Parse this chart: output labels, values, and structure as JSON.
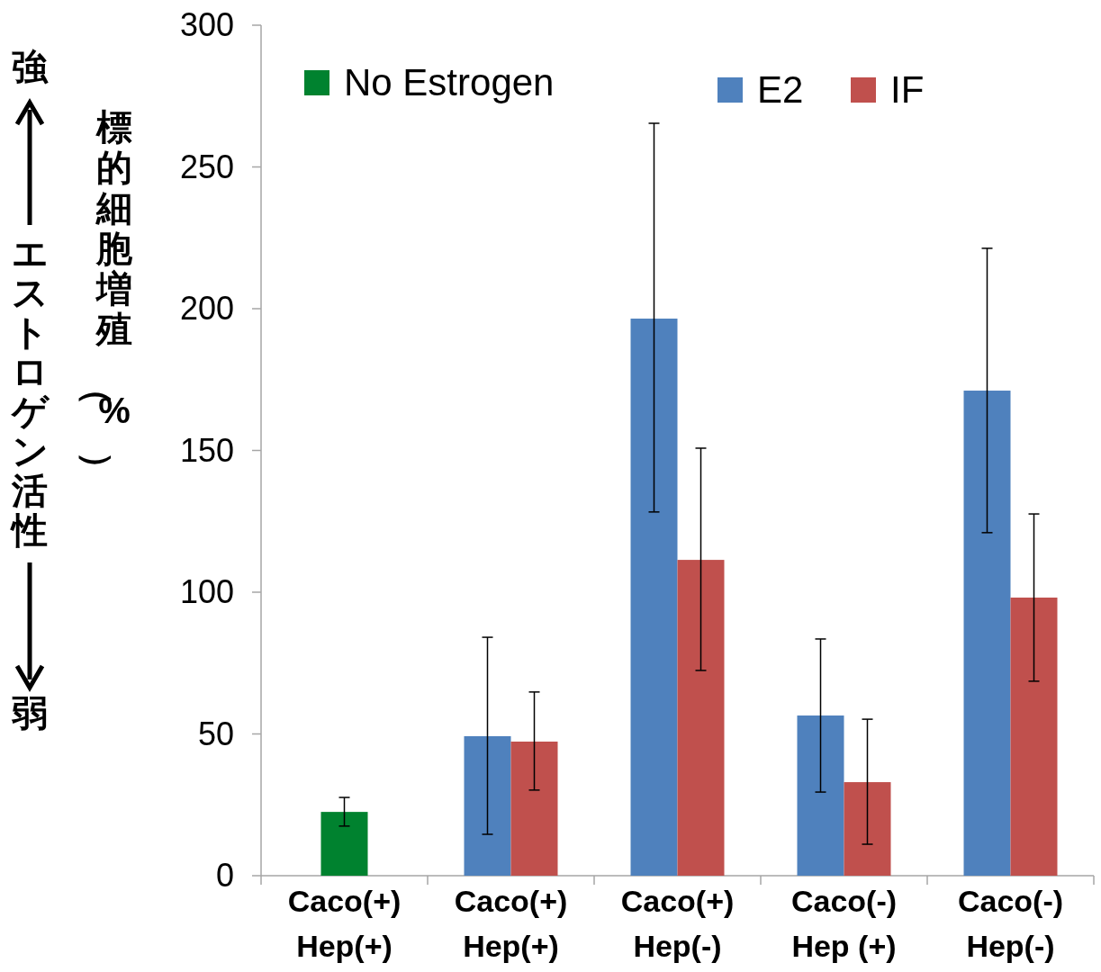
{
  "chart_data": {
    "type": "bar",
    "ylabel": "標的細胞増殖（%）",
    "annotations": [
      "強",
      "エストロゲン活性",
      "弱"
    ],
    "categories": [
      "Caco(+)\nHep(+)",
      "Caco(+)\nHep(+)",
      "Caco(+)\nHep(-)",
      "Caco(-)\nHep (+)",
      "Caco(-)\nHep(-)"
    ],
    "series": [
      {
        "name": "No Estrogen",
        "color": "#00822f",
        "values": [
          22.5,
          null,
          null,
          null,
          null
        ],
        "errors": [
          [
            17.5,
            27.6
          ],
          null,
          null,
          null,
          null
        ]
      },
      {
        "name": "E2",
        "color": "#4f81bd",
        "values": [
          null,
          49.2,
          196.5,
          56.5,
          171.1
        ],
        "errors": [
          null,
          [
            14.6,
            84.1
          ],
          [
            128.3,
            265.4
          ],
          [
            29.5,
            83.5
          ],
          [
            121,
            221.3
          ]
        ]
      },
      {
        "name": "IF",
        "color": "#c0504d",
        "values": [
          null,
          47.3,
          111.4,
          33,
          98.1
        ],
        "errors": [
          null,
          [
            30.2,
            64.8
          ],
          [
            72.4,
            150.8
          ],
          [
            11.1,
            55.2
          ],
          [
            68.6,
            127.6
          ]
        ]
      }
    ],
    "ylim": [
      0,
      300
    ],
    "yticks": [
      0,
      50,
      100,
      150,
      200,
      250,
      300
    ],
    "grid": false,
    "legend": "top"
  }
}
